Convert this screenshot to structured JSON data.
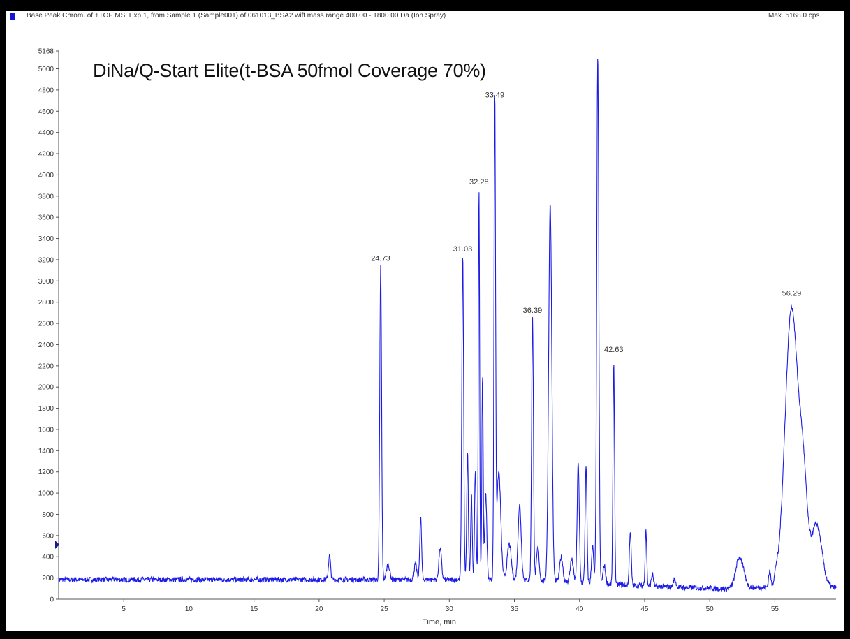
{
  "header": {
    "title": "Base Peak Chrom. of +TOF MS: Exp 1, from Sample 1 (Sample001) of 061013_BSA2.wiff mass range 400.00 - 1800.00 Da (Ion Spray)",
    "max_label": "Max. 5168.0 cps.",
    "marker_color": "#1515d6"
  },
  "chart_data": {
    "type": "line",
    "title": "DiNa/Q-Start Elite(t-BSA 50fmol Coverage 70%)",
    "xlabel": "Time, min",
    "ylabel": "",
    "xlim": [
      0,
      59.7
    ],
    "ylim": [
      0,
      5168
    ],
    "x_ticks": [
      5,
      10,
      15,
      20,
      25,
      30,
      35,
      40,
      45,
      50,
      55
    ],
    "y_ticks": [
      0,
      200,
      400,
      600,
      800,
      1000,
      1200,
      1400,
      1600,
      1800,
      2000,
      2200,
      2400,
      2600,
      2800,
      3000,
      3200,
      3400,
      3600,
      3800,
      4000,
      4200,
      4400,
      4600,
      4800,
      5000,
      5168
    ],
    "line_color": "#1c1ce6",
    "baseline": 185,
    "peaks": [
      {
        "x": 20.8,
        "y": 410,
        "w": 0.08
      },
      {
        "x": 24.73,
        "y": 3150,
        "w": 0.07
      },
      {
        "x": 25.3,
        "y": 330,
        "w": 0.12
      },
      {
        "x": 27.4,
        "y": 330,
        "w": 0.1
      },
      {
        "x": 27.8,
        "y": 770,
        "w": 0.07
      },
      {
        "x": 29.3,
        "y": 480,
        "w": 0.1
      },
      {
        "x": 31.03,
        "y": 3240,
        "w": 0.07
      },
      {
        "x": 31.4,
        "y": 1390,
        "w": 0.06
      },
      {
        "x": 31.7,
        "y": 980,
        "w": 0.06
      },
      {
        "x": 32.0,
        "y": 1220,
        "w": 0.06
      },
      {
        "x": 32.28,
        "y": 3870,
        "w": 0.05
      },
      {
        "x": 32.55,
        "y": 2120,
        "w": 0.05
      },
      {
        "x": 32.8,
        "y": 1000,
        "w": 0.08
      },
      {
        "x": 33.49,
        "y": 4690,
        "w": 0.06
      },
      {
        "x": 33.8,
        "y": 1200,
        "w": 0.15
      },
      {
        "x": 34.6,
        "y": 520,
        "w": 0.15
      },
      {
        "x": 35.4,
        "y": 890,
        "w": 0.12
      },
      {
        "x": 36.39,
        "y": 2660,
        "w": 0.07
      },
      {
        "x": 36.8,
        "y": 500,
        "w": 0.1
      },
      {
        "x": 37.75,
        "y": 3750,
        "w": 0.12
      },
      {
        "x": 38.6,
        "y": 420,
        "w": 0.12
      },
      {
        "x": 39.4,
        "y": 400,
        "w": 0.12
      },
      {
        "x": 39.9,
        "y": 1330,
        "w": 0.08
      },
      {
        "x": 40.5,
        "y": 1280,
        "w": 0.07
      },
      {
        "x": 41.0,
        "y": 540,
        "w": 0.08
      },
      {
        "x": 41.4,
        "y": 5168,
        "w": 0.08
      },
      {
        "x": 41.9,
        "y": 360,
        "w": 0.1
      },
      {
        "x": 42.63,
        "y": 2290,
        "w": 0.06
      },
      {
        "x": 43.9,
        "y": 700,
        "w": 0.07
      },
      {
        "x": 45.1,
        "y": 720,
        "w": 0.06
      },
      {
        "x": 45.6,
        "y": 300,
        "w": 0.08
      },
      {
        "x": 47.3,
        "y": 260,
        "w": 0.1
      },
      {
        "x": 52.3,
        "y": 470,
        "w": 0.3
      },
      {
        "x": 54.6,
        "y": 330,
        "w": 0.08
      },
      {
        "x": 55.1,
        "y": 260,
        "w": 0.1
      },
      {
        "x": 56.29,
        "y": 2820,
        "w": 0.5
      },
      {
        "x": 57.2,
        "y": 1000,
        "w": 0.3
      },
      {
        "x": 58.2,
        "y": 780,
        "w": 0.4
      }
    ],
    "peak_labels": [
      {
        "text": "24.73",
        "x": 24.73,
        "y": 3150
      },
      {
        "text": "31.03",
        "x": 31.03,
        "y": 3240
      },
      {
        "text": "32.28",
        "x": 32.28,
        "y": 3870
      },
      {
        "text": "33.49",
        "x": 33.49,
        "y": 4690
      },
      {
        "text": "36.39",
        "x": 36.39,
        "y": 2660
      },
      {
        "text": "42.63",
        "x": 42.63,
        "y": 2290
      },
      {
        "text": "56.29",
        "x": 56.29,
        "y": 2820
      }
    ],
    "grid": false,
    "legend": "none"
  }
}
